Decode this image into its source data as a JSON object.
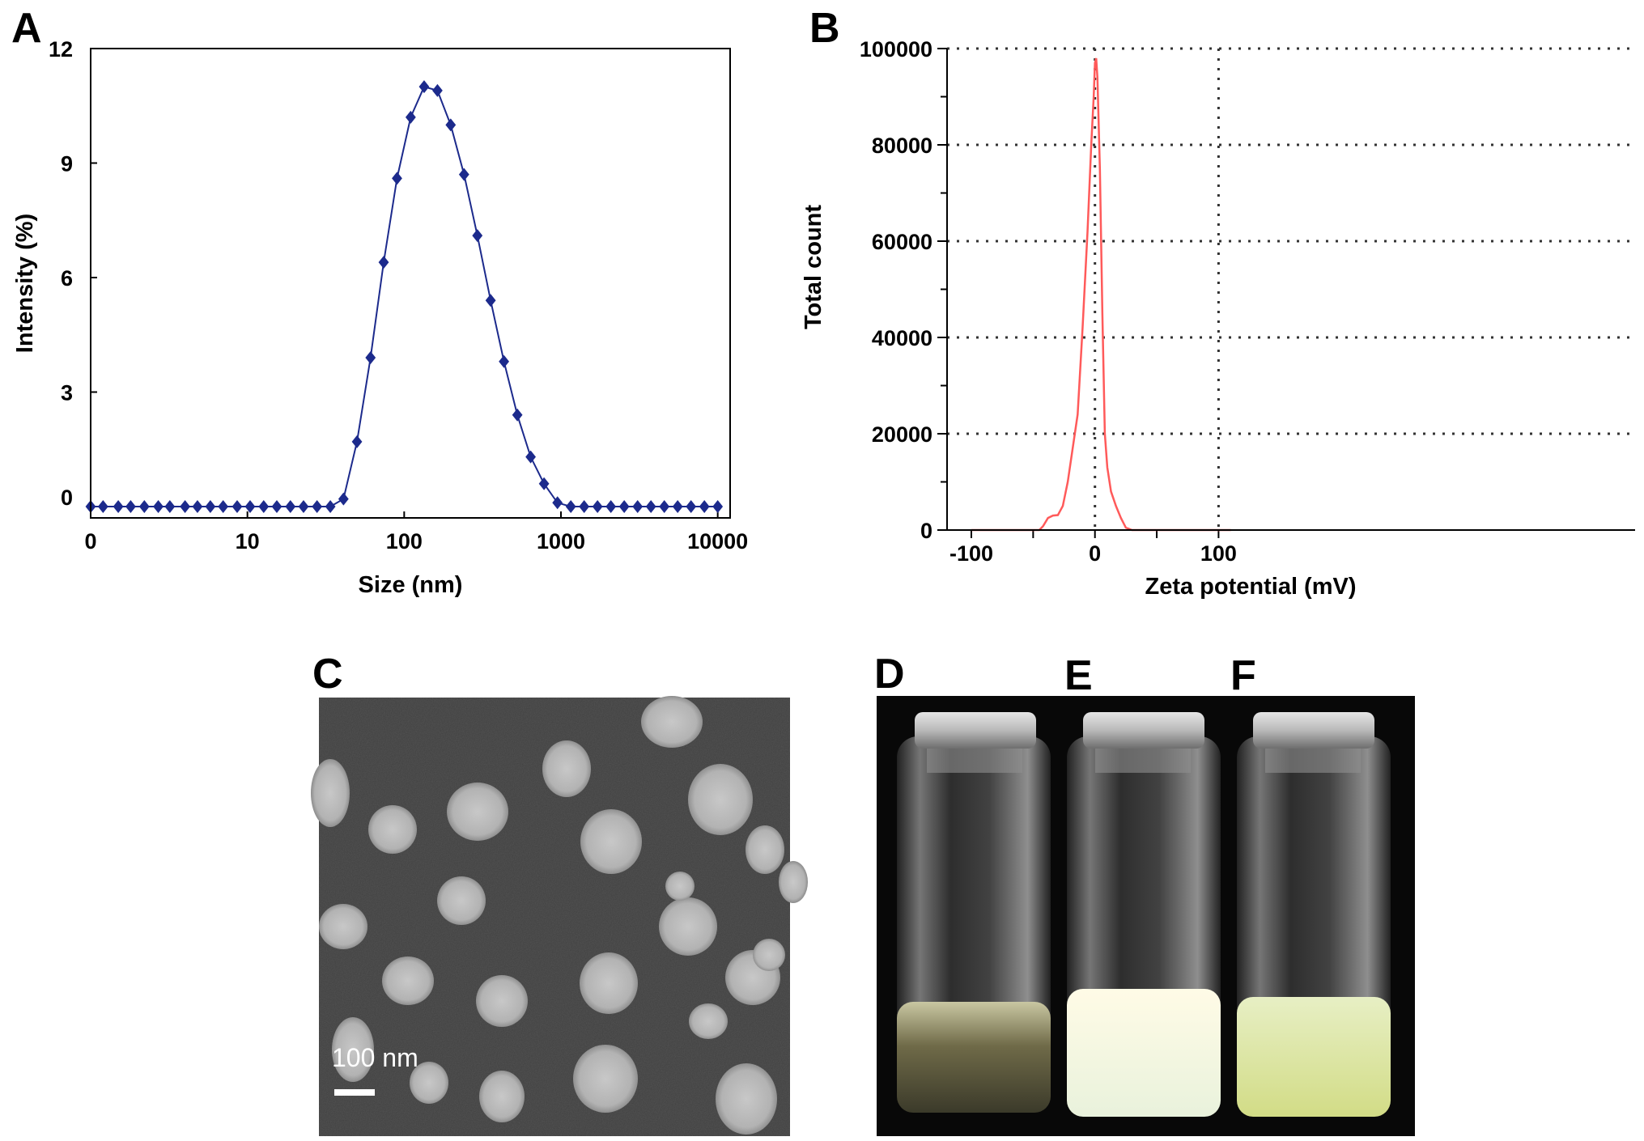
{
  "panels": {
    "a": "A",
    "b": "B",
    "c": "C",
    "d": "D",
    "e": "E",
    "f": "F"
  },
  "scale_bar_label": "100 nm",
  "chart_data": [
    {
      "panel": "A",
      "type": "scatter",
      "xlabel": "Size (nm)",
      "ylabel": "Intensity (%)",
      "x_scale": "log",
      "xticks": [
        "0",
        "10",
        "100",
        "1000",
        "10000"
      ],
      "yticks": [
        "0",
        "3",
        "6",
        "9",
        "12"
      ],
      "ylim": [
        0,
        12
      ],
      "grid": false,
      "marker": "diamond",
      "color": "#1c2a8c",
      "series": [
        {
          "x": [
            1,
            1.2,
            1.5,
            1.8,
            2.2,
            2.7,
            3.2,
            4,
            4.8,
            5.8,
            7,
            8.6,
            10.4,
            12.7,
            15.4,
            18.8,
            22.8,
            27.8,
            33.8,
            41,
            50,
            61,
            74,
            90,
            110,
            134,
            163,
            198,
            241,
            293,
            356,
            433,
            527,
            641,
            780,
            950,
            1156,
            1406,
            1711,
            2082,
            2533,
            3083,
            3750,
            4563,
            5553,
            6756,
            8221,
            10000
          ],
          "y": [
            0,
            0,
            0,
            0,
            0,
            0,
            0,
            0,
            0,
            0,
            0,
            0,
            0,
            0,
            0,
            0,
            0,
            0,
            0,
            0.2,
            1.7,
            3.9,
            6.4,
            8.6,
            10.2,
            11,
            10.9,
            10,
            8.7,
            7.1,
            5.4,
            3.8,
            2.4,
            1.3,
            0.6,
            0.1,
            0,
            0,
            0,
            0,
            0,
            0,
            0,
            0,
            0,
            0,
            0,
            0
          ]
        }
      ]
    },
    {
      "panel": "B",
      "type": "line",
      "xlabel": "Zeta potential (mV)",
      "ylabel": "Total count",
      "xticks": [
        "-100",
        "0",
        "100"
      ],
      "yticks": [
        "0",
        "20000",
        "40000",
        "60000",
        "80000",
        "100000"
      ],
      "xlim": [
        -100,
        110
      ],
      "ylim": [
        0,
        100000
      ],
      "grid": true,
      "color": "#ff5a5a",
      "series": [
        {
          "x": [
            -100,
            -45,
            -42,
            -38,
            -34,
            -30,
            -26,
            -22,
            -18,
            -14,
            -10,
            -6,
            -3,
            -1,
            0,
            1,
            2,
            4,
            6,
            8,
            10,
            13,
            17,
            21,
            25,
            30,
            40,
            110
          ],
          "y": [
            0,
            0,
            800,
            2500,
            3000,
            3100,
            5000,
            10000,
            17000,
            24000,
            42000,
            62000,
            80000,
            90000,
            97000,
            98000,
            94000,
            75000,
            45000,
            20000,
            13000,
            8000,
            5000,
            2500,
            500,
            0,
            0,
            0
          ]
        }
      ]
    }
  ]
}
